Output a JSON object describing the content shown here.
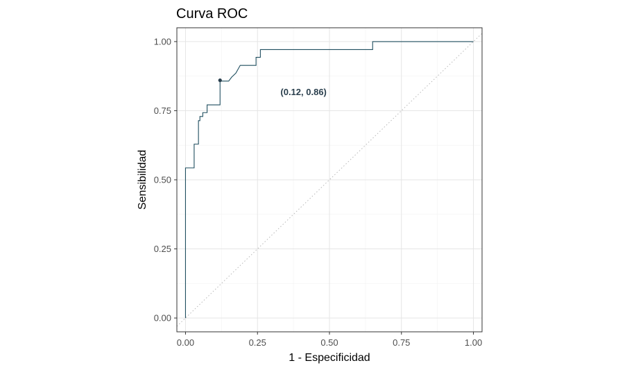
{
  "chart_data": {
    "type": "line",
    "title": "Curva ROC",
    "xlabel": "1 - Especificidad",
    "ylabel": "Sensibilidad",
    "xlim": [
      -0.03,
      1.03
    ],
    "ylim": [
      -0.05,
      1.05
    ],
    "xticks": [
      0,
      0.25,
      0.5,
      0.75,
      1
    ],
    "yticks": [
      0,
      0.25,
      0.5,
      0.75,
      1
    ],
    "xtick_labels": [
      "0.00",
      "0.25",
      "0.50",
      "0.75",
      "1.00"
    ],
    "ytick_labels": [
      "0.00",
      "0.25",
      "0.50",
      "0.75",
      "1.00"
    ],
    "grid": true,
    "series": [
      {
        "line_color": "#1f4e5f",
        "x": [
          0,
          0,
          0.03,
          0.03,
          0.045,
          0.045,
          0.05,
          0.05,
          0.06,
          0.06,
          0.075,
          0.075,
          0.12,
          0.12,
          0.15,
          0.16,
          0.175,
          0.19,
          0.245,
          0.245,
          0.26,
          0.26,
          0.65,
          0.65,
          1.0
        ],
        "y": [
          0,
          0.543,
          0.543,
          0.629,
          0.629,
          0.714,
          0.714,
          0.729,
          0.729,
          0.743,
          0.743,
          0.771,
          0.771,
          0.857,
          0.857,
          0.871,
          0.886,
          0.914,
          0.914,
          0.943,
          0.943,
          0.971,
          0.971,
          1.0,
          1.0
        ]
      }
    ],
    "reference_line": {
      "x": [
        -0.03,
        1.03
      ],
      "y": [
        -0.03,
        1.03
      ],
      "style": "dotted",
      "color": "#b8b8b8"
    },
    "point": {
      "x": 0.12,
      "y": 0.86,
      "color": "#2a3f4d"
    },
    "annotation": {
      "text": "(0.12, 0.86)",
      "x": 0.41,
      "y": 0.806,
      "color": "#2a3f4d"
    }
  }
}
